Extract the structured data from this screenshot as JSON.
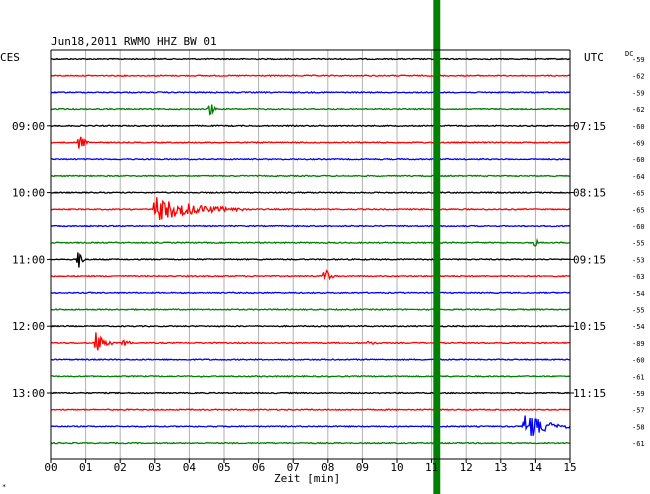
{
  "chart_data": {
    "type": "helicorder",
    "title": "Jun18,2011  RWMO HHZ BW 01",
    "tz_left": "CES",
    "tz_right": "UTC",
    "dc_label": "DC",
    "xlabel": "Zeit [min]",
    "x_ticks": [
      "00",
      "01",
      "02",
      "03",
      "04",
      "05",
      "06",
      "07",
      "08",
      "09",
      "10",
      "11",
      "12",
      "13",
      "14",
      "15"
    ],
    "xlim": [
      0,
      15
    ],
    "trace_colors": [
      "#000000",
      "#ff0000",
      "#0000ff",
      "#008000"
    ],
    "left_hour_labels": [
      {
        "trace": 4,
        "text": "09:00"
      },
      {
        "trace": 8,
        "text": "10:00"
      },
      {
        "trace": 12,
        "text": "11:00"
      },
      {
        "trace": 16,
        "text": "12:00"
      },
      {
        "trace": 20,
        "text": "13:00"
      }
    ],
    "right_hour_labels": [
      {
        "trace": 4,
        "text": "07:15"
      },
      {
        "trace": 8,
        "text": "08:15"
      },
      {
        "trace": 12,
        "text": "09:15"
      },
      {
        "trace": 16,
        "text": "10:15"
      },
      {
        "trace": 20,
        "text": "11:15"
      }
    ],
    "dc_offsets": [
      -59,
      -62,
      -59,
      -62,
      -60,
      -69,
      -60,
      -64,
      -65,
      -65,
      -60,
      -55,
      -53,
      -63,
      -54,
      -55,
      -54,
      -89,
      -60,
      -61,
      -59,
      -57,
      -58,
      -61
    ],
    "events": [
      {
        "trace": 3,
        "minute": 4.6,
        "amplitude": 0.5,
        "duration": 0.2
      },
      {
        "trace": 5,
        "minute": 0.8,
        "amplitude": 0.7,
        "duration": 0.35
      },
      {
        "trace": 9,
        "minute": 3.0,
        "amplitude": 0.8,
        "duration": 2.8
      },
      {
        "trace": 11,
        "minute": 14.0,
        "amplitude": 0.3,
        "duration": 0.15
      },
      {
        "trace": 12,
        "minute": 0.8,
        "amplitude": 0.7,
        "duration": 0.25
      },
      {
        "trace": 13,
        "minute": 7.9,
        "amplitude": 0.6,
        "duration": 0.3
      },
      {
        "trace": 17,
        "minute": 1.3,
        "amplitude": 0.8,
        "duration": 0.5
      },
      {
        "trace": 17,
        "minute": 2.1,
        "amplitude": 0.35,
        "duration": 0.25
      },
      {
        "trace": 17,
        "minute": 9.2,
        "amplitude": 0.3,
        "duration": 0.25
      },
      {
        "trace": 22,
        "minute": 13.7,
        "amplitude": 0.9,
        "duration": 1.3
      }
    ],
    "gap_band": {
      "minute_start": 11.05,
      "minute_end": 11.25,
      "color": "#008000"
    },
    "bottom_left_mark": "*"
  }
}
